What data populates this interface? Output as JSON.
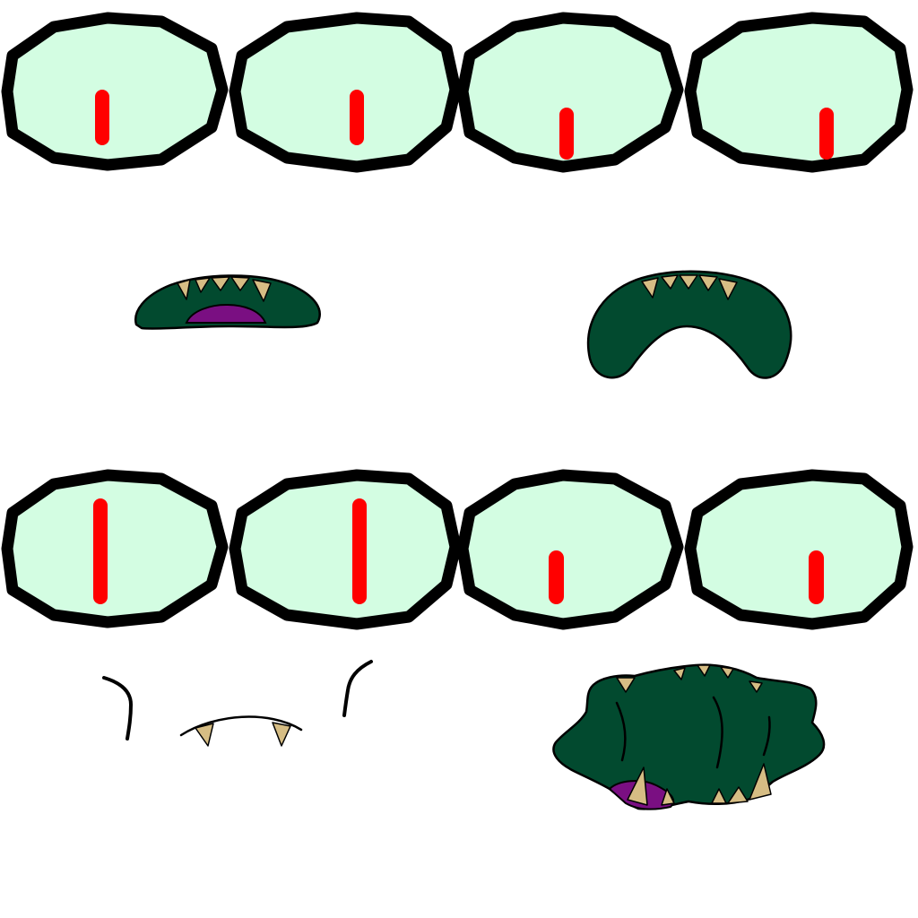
{
  "colors": {
    "eye_fill": "#d3fde2",
    "outline": "#000000",
    "pupil": "#ff0000",
    "mouth": "#024a2f",
    "tongue": "#7a0f82",
    "tooth": "#d6bd84"
  },
  "sprites": {
    "eye_rows": [
      {
        "name": "eye-row-top",
        "eyes": [
          {
            "pupil": "slit",
            "gaze": "center"
          },
          {
            "pupil": "slit",
            "gaze": "center"
          },
          {
            "pupil": "slit",
            "gaze": "down"
          },
          {
            "pupil": "slit",
            "gaze": "down"
          }
        ]
      },
      {
        "name": "eye-row-bottom",
        "eyes": [
          {
            "pupil": "tall-slit",
            "gaze": "center"
          },
          {
            "pupil": "tall-slit",
            "gaze": "center"
          },
          {
            "pupil": "small-slit",
            "gaze": "down"
          },
          {
            "pupil": "small-slit",
            "gaze": "down"
          }
        ]
      }
    ],
    "mouths": [
      "mouth-open-tongue",
      "mouth-frown",
      "mouth-fangs-with-brows",
      "mouth-wide-open"
    ]
  }
}
